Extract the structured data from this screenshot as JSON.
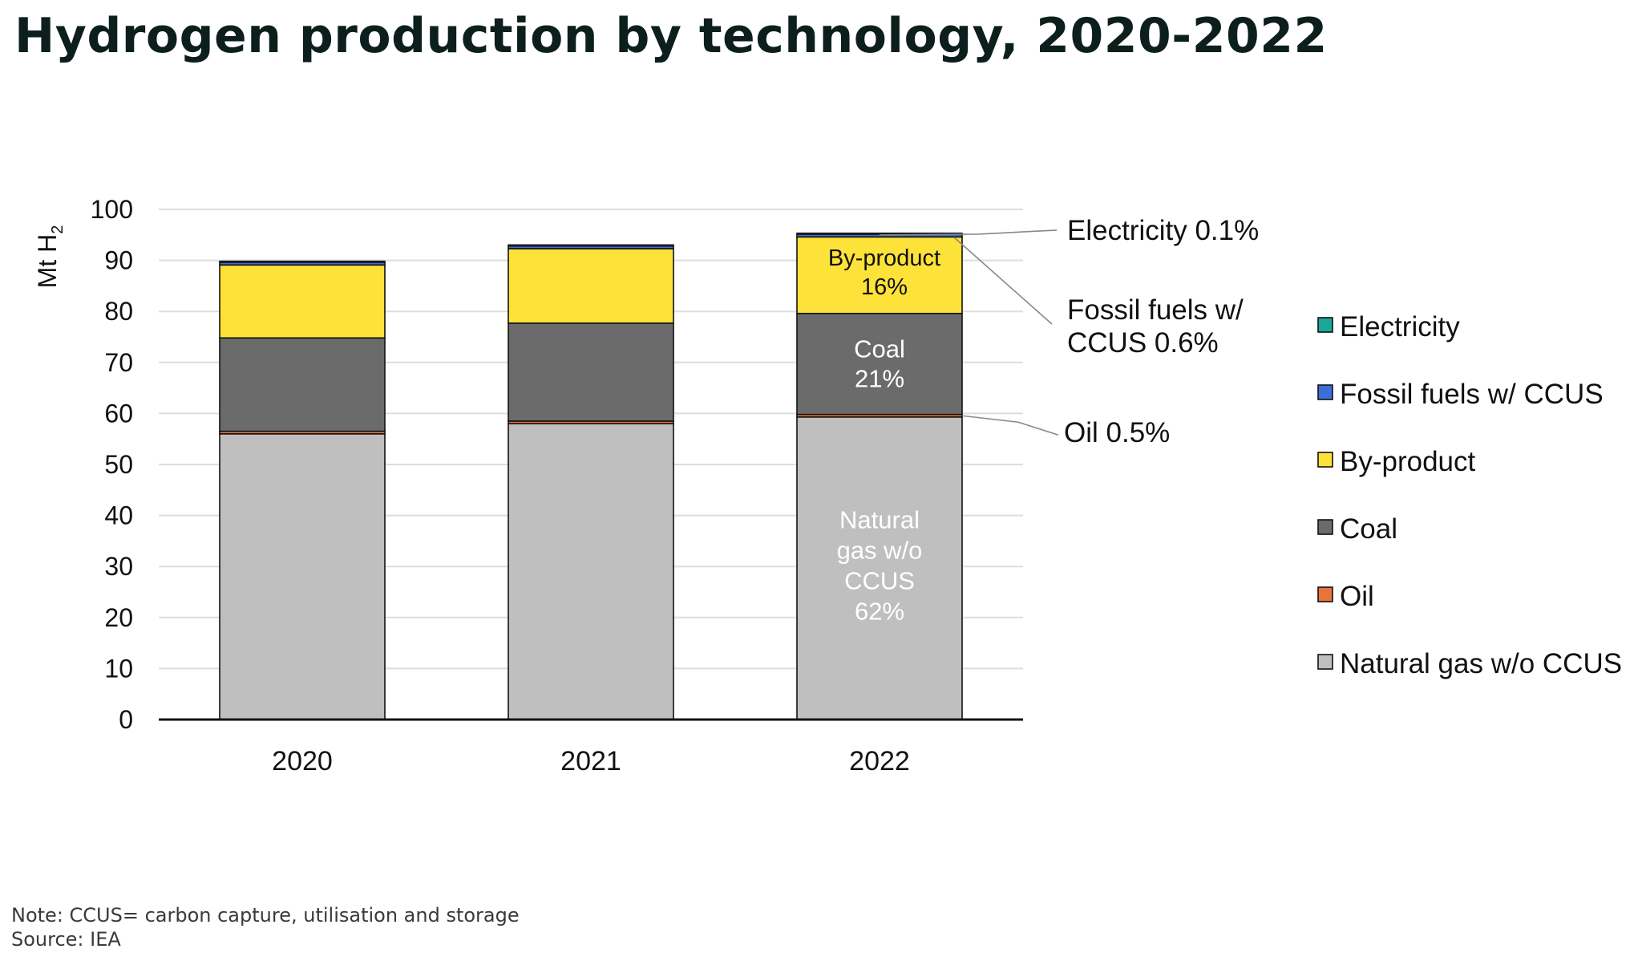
{
  "title": "Hydrogen production by technology, 2020-2022",
  "note": "Note: CCUS= carbon capture, utilisation and storage",
  "source": "Source: IEA",
  "chart_data": {
    "type": "bar",
    "stacked": true,
    "ylabel": "Mt H",
    "ylabel_subscript": "2",
    "ylim": [
      0,
      100
    ],
    "yticks": [
      "0",
      "10",
      "20",
      "30",
      "40",
      "50",
      "60",
      "70",
      "80",
      "90",
      "100"
    ],
    "grid": true,
    "legend_position": "right",
    "categories": [
      "2020",
      "2021",
      "2022"
    ],
    "series": [
      {
        "name": "Natural gas w/o CCUS",
        "color": "#bfbfbf",
        "values": [
          56.0,
          58.0,
          59.3
        ]
      },
      {
        "name": "Oil",
        "color": "#e8743b",
        "values": [
          0.5,
          0.5,
          0.5
        ]
      },
      {
        "name": "Coal",
        "color": "#6b6b6b",
        "values": [
          18.3,
          19.2,
          19.8
        ]
      },
      {
        "name": "By-product",
        "color": "#fde23a",
        "values": [
          14.3,
          14.6,
          15.0
        ]
      },
      {
        "name": "Fossil fuels w/ CCUS",
        "color": "#3a6fd8",
        "values": [
          0.6,
          0.6,
          0.6
        ]
      },
      {
        "name": "Electricity",
        "color": "#1aa89a",
        "values": [
          0.1,
          0.1,
          0.1
        ]
      }
    ],
    "legend_order": [
      "Electricity",
      "Fossil fuels w/ CCUS",
      "By-product",
      "Coal",
      "Oil",
      "Natural gas w/o CCUS"
    ],
    "bar_labels_2022": {
      "byproduct": [
        "By-product",
        "16%"
      ],
      "coal": [
        "Coal",
        "21%"
      ],
      "natural_gas": [
        "Natural",
        "gas w/o",
        "CCUS",
        "62%"
      ]
    },
    "annotations": {
      "electricity": "Electricity 0.1%",
      "fossil_ccus": [
        "Fossil fuels w/",
        "CCUS 0.6%"
      ],
      "oil": "Oil 0.5%"
    }
  }
}
